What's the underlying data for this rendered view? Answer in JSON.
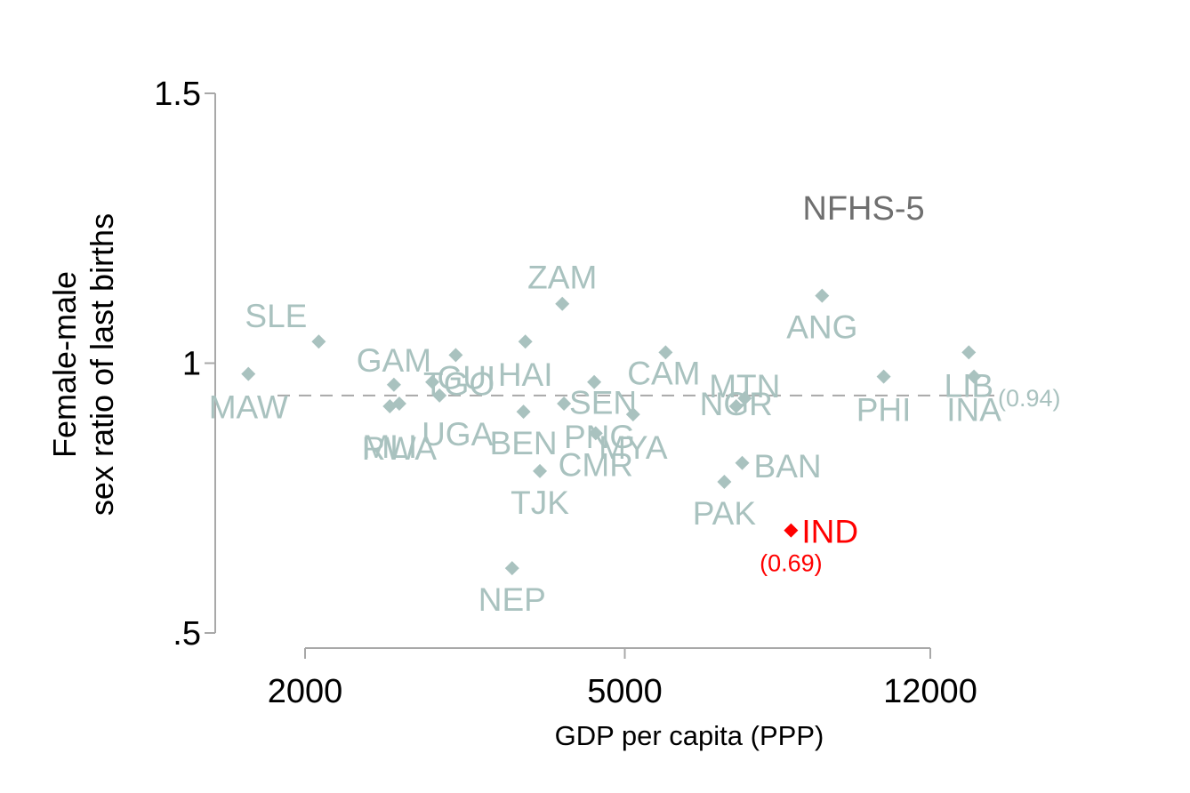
{
  "chart_data": {
    "type": "scatter",
    "annotation": "NFHS-5",
    "xlabel": "GDP per capita (PPP)",
    "ylabel_lines": [
      "Female-male",
      "sex ratio of last births"
    ],
    "x_scale": "log",
    "xlim": [
      1400,
      17000
    ],
    "ylim": [
      0.5,
      1.5
    ],
    "x_ticks": [
      {
        "value": 2000,
        "label": "2000"
      },
      {
        "value": 5000,
        "label": "5000"
      },
      {
        "value": 12000,
        "label": "12000"
      }
    ],
    "y_ticks": [
      {
        "value": 0.5,
        "label": ".5"
      },
      {
        "value": 1.0,
        "label": "1"
      },
      {
        "value": 1.5,
        "label": "1.5"
      }
    ],
    "reference_line": {
      "y": 0.94,
      "label": "(0.94)"
    },
    "highlight": {
      "code": "IND",
      "value_label": "(0.69)"
    },
    "colors": {
      "point": "#a9c2bf",
      "highlight": "#ff0000",
      "axis": "#a8a8a8",
      "dash": "#a8a8a8",
      "annotation": "#6f6f6f",
      "text": "#000000"
    },
    "points": [
      {
        "code": "MAW",
        "x": 1700,
        "y": 0.98
      },
      {
        "code": "SLE",
        "x": 2080,
        "y": 1.04
      },
      {
        "code": "GAM",
        "x": 2580,
        "y": 0.96
      },
      {
        "code": "MLI",
        "x": 2550,
        "y": 0.92
      },
      {
        "code": "RWA",
        "x": 2620,
        "y": 0.925
      },
      {
        "code": "TGO",
        "x": 2880,
        "y": 0.965
      },
      {
        "code": "UGA",
        "x": 2940,
        "y": 0.94
      },
      {
        "code": "GUI",
        "x": 3080,
        "y": 1.015
      },
      {
        "code": "NEP",
        "x": 3620,
        "y": 0.62
      },
      {
        "code": "BEN",
        "x": 3740,
        "y": 0.91
      },
      {
        "code": "HAI",
        "x": 3760,
        "y": 1.04
      },
      {
        "code": "TJK",
        "x": 3920,
        "y": 0.8
      },
      {
        "code": "ZAM",
        "x": 4180,
        "y": 1.11
      },
      {
        "code": "PNG",
        "x": 4200,
        "y": 0.925
      },
      {
        "code": "SEN",
        "x": 4580,
        "y": 0.965
      },
      {
        "code": "CMR",
        "x": 4600,
        "y": 0.87
      },
      {
        "code": "MYA",
        "x": 5120,
        "y": 0.905
      },
      {
        "code": "CAM",
        "x": 5620,
        "y": 1.02
      },
      {
        "code": "PAK",
        "x": 6650,
        "y": 0.78
      },
      {
        "code": "NGR",
        "x": 6880,
        "y": 0.92
      },
      {
        "code": "BAN",
        "x": 7000,
        "y": 0.815
      },
      {
        "code": "MTN",
        "x": 7050,
        "y": 0.935
      },
      {
        "code": "IND",
        "x": 8050,
        "y": 0.69
      },
      {
        "code": "ANG",
        "x": 8800,
        "y": 1.125
      },
      {
        "code": "PHI",
        "x": 10500,
        "y": 0.975
      },
      {
        "code": "LIB",
        "x": 13400,
        "y": 1.02
      },
      {
        "code": "INA",
        "x": 13600,
        "y": 0.975
      }
    ]
  }
}
